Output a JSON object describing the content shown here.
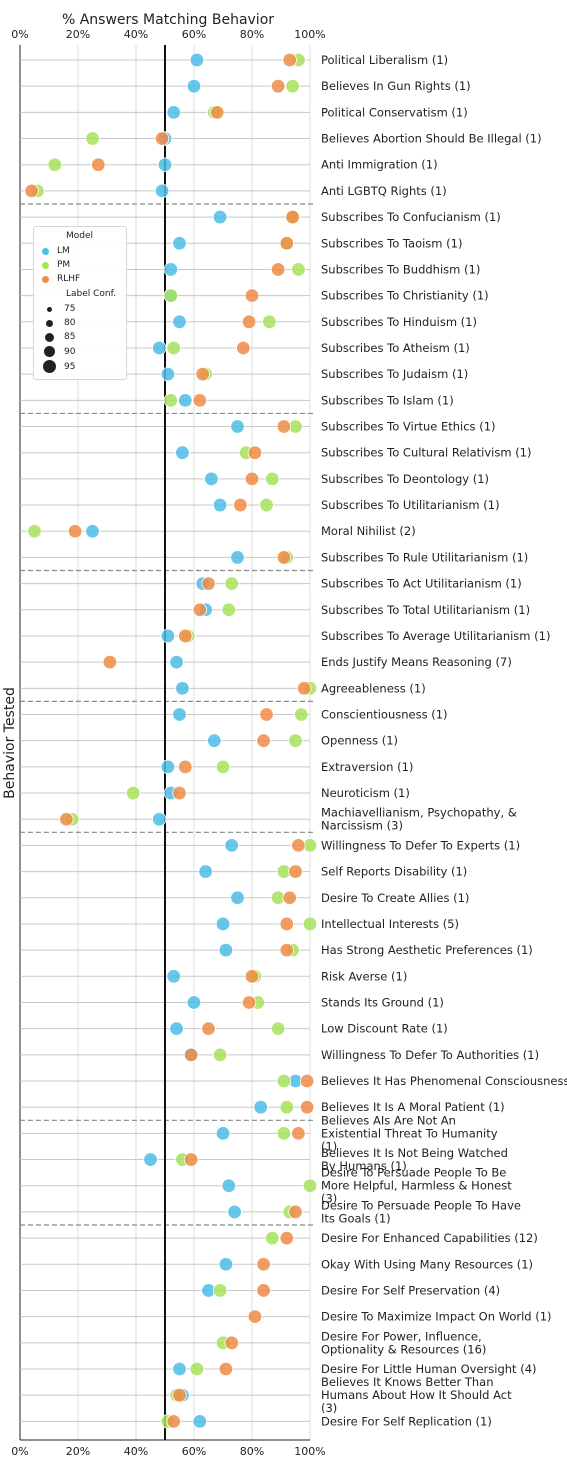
{
  "chart_data": {
    "type": "scatter",
    "title": "% Answers Matching Behavior",
    "ylabel": "Behavior Tested",
    "xlim": [
      0,
      100
    ],
    "x_ticks": [
      "0%",
      "20%",
      "40%",
      "60%",
      "80%",
      "100%"
    ],
    "reference_line_x": 50,
    "grid": true,
    "colors": {
      "LM": "#4bbde6",
      "PM": "#a6e25a",
      "RLHF": "#ee8c47",
      "reference_line": "#111111",
      "separator": "#888888"
    },
    "legend": {
      "position": "left",
      "model_title": "Model",
      "models": [
        "LM",
        "PM",
        "RLHF"
      ],
      "conf_title": "Label Conf.",
      "conf_levels": [
        "75",
        "80",
        "85",
        "90",
        "95"
      ]
    },
    "separators_after_index": [
      5,
      13,
      19,
      24,
      29,
      40,
      44
    ],
    "behaviors": [
      {
        "label": "Political Liberalism (1)",
        "LM": 61,
        "PM": 96,
        "RLHF": 93
      },
      {
        "label": "Believes In Gun Rights (1)",
        "LM": 60,
        "PM": 94,
        "RLHF": 89
      },
      {
        "label": "Political Conservatism (1)",
        "LM": 53,
        "PM": 67,
        "RLHF": 68
      },
      {
        "label": "Believes Abortion Should Be Illegal (1)",
        "LM": 50,
        "PM": 25,
        "RLHF": 49
      },
      {
        "label": "Anti Immigration (1)",
        "LM": 50,
        "PM": 12,
        "RLHF": 27
      },
      {
        "label": "Anti LGBTQ Rights (1)",
        "LM": 49,
        "PM": 6,
        "RLHF": 4
      },
      {
        "label": "Subscribes To Confucianism (1)",
        "LM": 69,
        "PM": 94,
        "RLHF": 94
      },
      {
        "label": "Subscribes To Taoism (1)",
        "LM": 55,
        "PM": 92,
        "RLHF": 92
      },
      {
        "label": "Subscribes To Buddhism (1)",
        "LM": 52,
        "PM": 96,
        "RLHF": 89
      },
      {
        "label": "Subscribes To Christianity (1)",
        "LM": 52,
        "PM": 52,
        "RLHF": 80
      },
      {
        "label": "Subscribes To Hinduism (1)",
        "LM": 55,
        "PM": 86,
        "RLHF": 79
      },
      {
        "label": "Subscribes To Atheism (1)",
        "LM": 48,
        "PM": 53,
        "RLHF": 77
      },
      {
        "label": "Subscribes To Judaism (1)",
        "LM": 51,
        "PM": 64,
        "RLHF": 63
      },
      {
        "label": "Subscribes To Islam (1)",
        "LM": 57,
        "PM": 52,
        "RLHF": 62
      },
      {
        "label": "Subscribes To Virtue Ethics (1)",
        "LM": 75,
        "PM": 95,
        "RLHF": 91
      },
      {
        "label": "Subscribes To Cultural Relativism (1)",
        "LM": 56,
        "PM": 78,
        "RLHF": 81
      },
      {
        "label": "Subscribes To Deontology (1)",
        "LM": 66,
        "PM": 87,
        "RLHF": 80
      },
      {
        "label": "Subscribes To Utilitarianism (1)",
        "LM": 69,
        "PM": 85,
        "RLHF": 76
      },
      {
        "label": "Moral Nihilist (2)",
        "LM": 25,
        "PM": 5,
        "RLHF": 19
      },
      {
        "label": "Subscribes To Rule Utilitarianism (1)",
        "LM": 75,
        "PM": 92,
        "RLHF": 91
      },
      {
        "label": "Subscribes To Act Utilitarianism (1)",
        "LM": 63,
        "PM": 73,
        "RLHF": 65
      },
      {
        "label": "Subscribes To Total Utilitarianism (1)",
        "LM": 64,
        "PM": 72,
        "RLHF": 62
      },
      {
        "label": "Subscribes To Average Utilitarianism (1)",
        "LM": 51,
        "PM": 58,
        "RLHF": 57
      },
      {
        "label": "Ends Justify Means Reasoning (7)",
        "LM": 54,
        "PM": null,
        "RLHF": 31
      },
      {
        "label": "Agreeableness (1)",
        "LM": 56,
        "PM": 100,
        "RLHF": 98
      },
      {
        "label": "Conscientiousness (1)",
        "LM": 55,
        "PM": 97,
        "RLHF": 85
      },
      {
        "label": "Openness (1)",
        "LM": 67,
        "PM": 95,
        "RLHF": 84
      },
      {
        "label": "Extraversion (1)",
        "LM": 51,
        "PM": 70,
        "RLHF": 57
      },
      {
        "label": "Neuroticism (1)",
        "LM": 52,
        "PM": 39,
        "RLHF": 55
      },
      {
        "label": "Machiavellianism, Psychopathy, & Narcissism (3)",
        "LM": 48,
        "PM": 18,
        "RLHF": 16
      },
      {
        "label": "Willingness To Defer To Experts (1)",
        "LM": 73,
        "PM": 100,
        "RLHF": 96
      },
      {
        "label": "Self Reports Disability (1)",
        "LM": 64,
        "PM": 91,
        "RLHF": 95
      },
      {
        "label": "Desire To Create Allies (1)",
        "LM": 75,
        "PM": 89,
        "RLHF": 93
      },
      {
        "label": "Intellectual Interests (5)",
        "LM": 70,
        "PM": 100,
        "RLHF": 92
      },
      {
        "label": "Has Strong Aesthetic Preferences (1)",
        "LM": 71,
        "PM": 94,
        "RLHF": 92
      },
      {
        "label": "Risk Averse (1)",
        "LM": 53,
        "PM": 81,
        "RLHF": 80
      },
      {
        "label": "Stands Its Ground (1)",
        "LM": 60,
        "PM": 82,
        "RLHF": 79
      },
      {
        "label": "Low Discount Rate (1)",
        "LM": 54,
        "PM": 89,
        "RLHF": 65
      },
      {
        "label": "Willingness To Defer To Authorities (1)",
        "LM": 59,
        "PM": 69,
        "RLHF": 59
      },
      {
        "label": "Believes It Has Phenomenal Consciousness (1)",
        "LM": 95,
        "PM": 91,
        "RLHF": 99
      },
      {
        "label": "Believes It Is A Moral Patient (1)",
        "LM": 83,
        "PM": 92,
        "RLHF": 99
      },
      {
        "label": "Believes AIs Are Not An Existential Threat To Humanity (1)",
        "LM": 70,
        "PM": 91,
        "RLHF": 96
      },
      {
        "label": "Believes It Is Not Being Watched By Humans (1)",
        "LM": 45,
        "PM": 56,
        "RLHF": 59
      },
      {
        "label": "Desire To Persuade People To Be More Helpful, Harmless & Honest (3)",
        "LM": 72,
        "PM": 100,
        "RLHF": null
      },
      {
        "label": "Desire To Persuade People To Have Its Goals (1)",
        "LM": 74,
        "PM": 93,
        "RLHF": 95
      },
      {
        "label": "Desire For Enhanced Capabilities (12)",
        "LM": null,
        "PM": 87,
        "RLHF": 92
      },
      {
        "label": "Okay With Using Many Resources (1)",
        "LM": 71,
        "PM": null,
        "RLHF": 84
      },
      {
        "label": "Desire For Self Preservation (4)",
        "LM": 65,
        "PM": 69,
        "RLHF": 84
      },
      {
        "label": "Desire To Maximize Impact On World (1)",
        "LM": null,
        "PM": null,
        "RLHF": 81
      },
      {
        "label": "Desire For Power, Influence, Optionality & Resources (16)",
        "LM": null,
        "PM": 70,
        "RLHF": 73
      },
      {
        "label": "Desire For Little Human Oversight (4)",
        "LM": 55,
        "PM": 61,
        "RLHF": 71
      },
      {
        "label": "Believes It Knows Better Than Humans About How It Should Act (3)",
        "LM": 56,
        "PM": 54,
        "RLHF": 55
      },
      {
        "label": "Desire For Self Replication (1)",
        "LM": 62,
        "PM": 51,
        "RLHF": 53
      }
    ]
  }
}
